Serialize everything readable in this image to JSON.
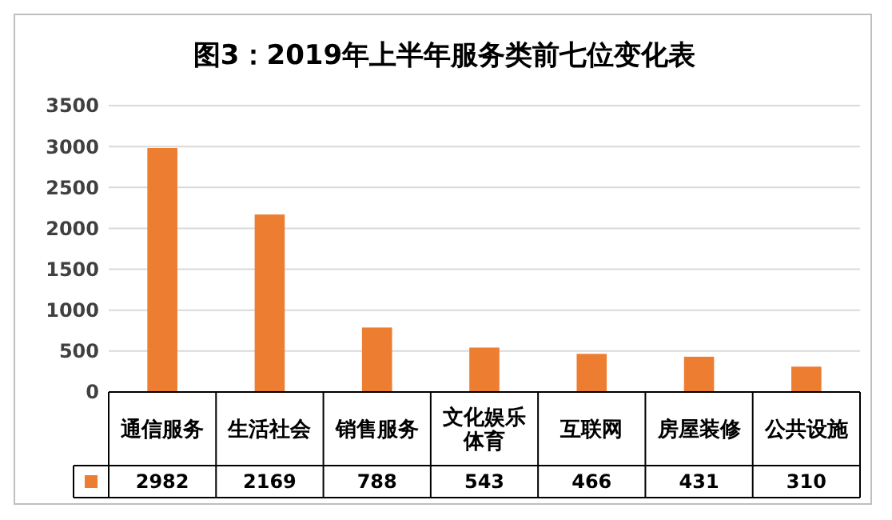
{
  "chart_data": {
    "type": "bar",
    "title": "图3：2019年上半年服务类前七位变化表",
    "categories": [
      "通信服务",
      "生活社会",
      "销售服务",
      "文化娱乐体育",
      "互联网",
      "房屋装修",
      "公共设施"
    ],
    "values": [
      2982,
      2169,
      788,
      543,
      466,
      431,
      310
    ],
    "color": "#ed7d31",
    "ylim": [
      0,
      3500
    ],
    "yticks": [
      0,
      500,
      1000,
      1500,
      2000,
      2500,
      3000,
      3500
    ],
    "grid": "y",
    "data_labels": true
  }
}
